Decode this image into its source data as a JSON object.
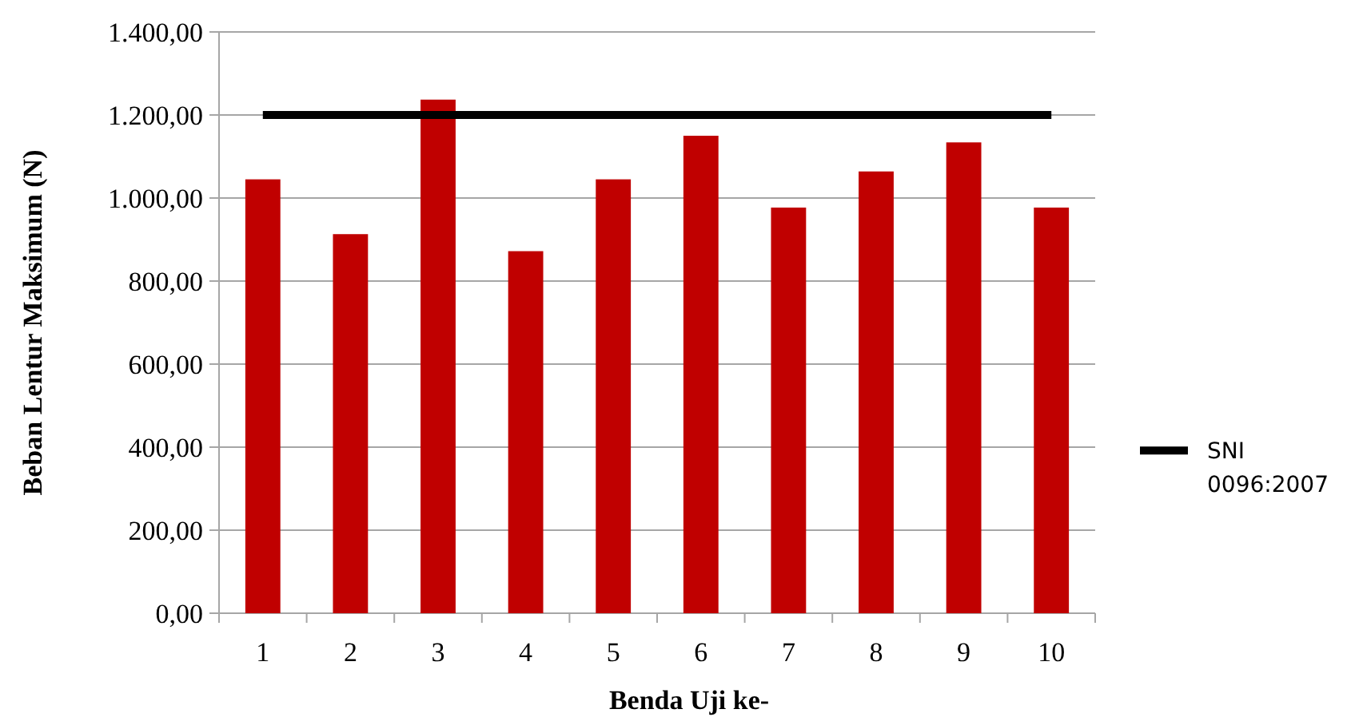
{
  "chart_data": {
    "type": "bar",
    "xlabel": "Benda Uji ke-",
    "ylabel": "Beban Lentur Maksimum (N)",
    "categories": [
      "1",
      "2",
      "3",
      "4",
      "5",
      "6",
      "7",
      "8",
      "9",
      "10"
    ],
    "series": [
      {
        "color": "#c00000",
        "values": [
          1045,
          913,
          1237,
          872,
          1045,
          1150,
          977,
          1064,
          1134,
          977
        ]
      },
      {
        "type": "line",
        "name": "SNI 0096:2007",
        "color": "#000000",
        "values": [
          1200,
          1200,
          1200,
          1200,
          1200,
          1200,
          1200,
          1200,
          1200,
          1200
        ]
      }
    ],
    "ylim": [
      0,
      1400
    ],
    "yticks": [
      {
        "value": 0,
        "label": "0,00"
      },
      {
        "value": 200,
        "label": "200,00"
      },
      {
        "value": 400,
        "label": "400,00"
      },
      {
        "value": 600,
        "label": "600,00"
      },
      {
        "value": 800,
        "label": "800,00"
      },
      {
        "value": 1000,
        "label": "1.000,00"
      },
      {
        "value": 1200,
        "label": "1.200,00"
      },
      {
        "value": 1400,
        "label": "1.400,00"
      }
    ],
    "grid": "y",
    "legend": "right",
    "marker": "none"
  }
}
